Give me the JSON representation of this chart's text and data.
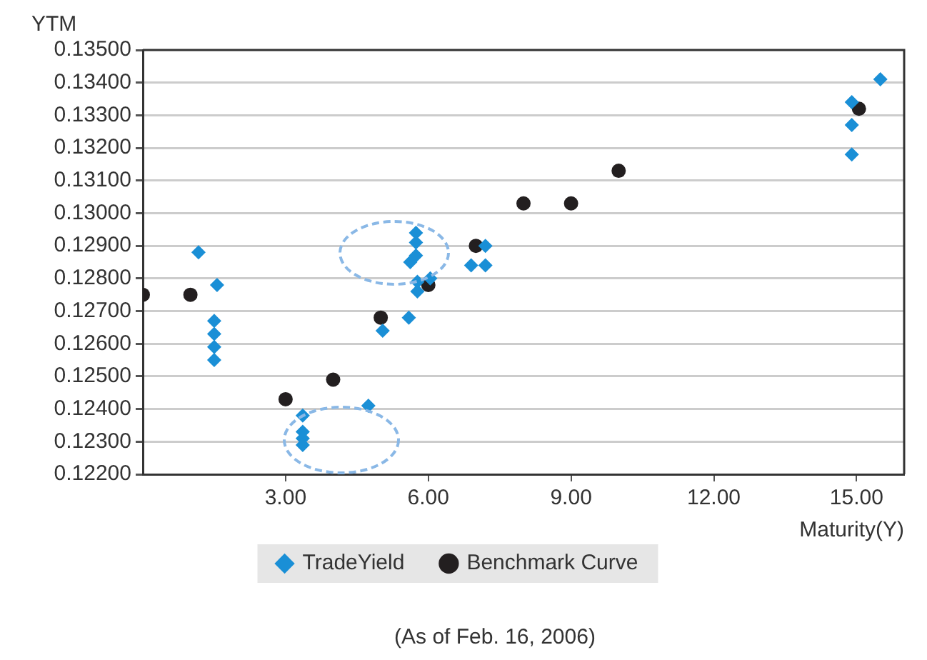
{
  "chart_data": {
    "type": "scatter",
    "xlabel": "Maturity(Y)",
    "ylabel": "YTM",
    "annotations": [
      "(As of Feb. 16, 2006)"
    ],
    "xlim": [
      0,
      16
    ],
    "xticks": [
      {
        "value": 3,
        "label": "3.00"
      },
      {
        "value": 6,
        "label": "6.00"
      },
      {
        "value": 9,
        "label": "9.00"
      },
      {
        "value": 12,
        "label": "12.00"
      },
      {
        "value": 15,
        "label": "15.00"
      }
    ],
    "ylim": [
      0.122,
      0.135
    ],
    "yticks": [
      {
        "value": 0.122,
        "label": "0.12200"
      },
      {
        "value": 0.123,
        "label": "0.12300"
      },
      {
        "value": 0.124,
        "label": "0.12400"
      },
      {
        "value": 0.125,
        "label": "0.12500"
      },
      {
        "value": 0.126,
        "label": "0.12600"
      },
      {
        "value": 0.127,
        "label": "0.12700"
      },
      {
        "value": 0.128,
        "label": "0.12800"
      },
      {
        "value": 0.129,
        "label": "0.12900"
      },
      {
        "value": 0.13,
        "label": "0.13000"
      },
      {
        "value": 0.131,
        "label": "0.13100"
      },
      {
        "value": 0.132,
        "label": "0.13200"
      },
      {
        "value": 0.133,
        "label": "0.13300"
      },
      {
        "value": 0.134,
        "label": "0.13400"
      },
      {
        "value": 0.135,
        "label": "0.13500"
      }
    ],
    "grid": "y",
    "legend": "bottom",
    "series": [
      {
        "name": "TradeYield",
        "color": "#1a8fd6",
        "marker": "diamond",
        "x": [
          1.17,
          1.56,
          1.5,
          1.5,
          1.5,
          1.5,
          3.36,
          3.36,
          3.36,
          3.36,
          4.74,
          5.04,
          5.59,
          5.74,
          5.74,
          5.74,
          5.62,
          5.77,
          5.77,
          6.04,
          6.9,
          7.2,
          7.2,
          14.9,
          14.9,
          14.9,
          15.5
        ],
        "values": [
          0.1288,
          0.1278,
          0.1267,
          0.1263,
          0.1259,
          0.1255,
          0.1238,
          0.1233,
          0.1231,
          0.1229,
          0.1241,
          0.1264,
          0.1268,
          0.1294,
          0.1291,
          0.1287,
          0.1285,
          0.1279,
          0.1276,
          0.128,
          0.1284,
          0.1284,
          0.129,
          0.1327,
          0.1318,
          0.1334,
          0.1341
        ]
      },
      {
        "name": "Benchmark Curve",
        "color": "#231f20",
        "marker": "circle",
        "x": [
          0,
          1,
          3,
          4,
          5,
          6,
          7,
          8,
          9,
          10,
          15.05
        ],
        "values": [
          0.1275,
          0.1275,
          0.1243,
          0.1249,
          0.1268,
          0.1278,
          0.129,
          0.1303,
          0.1303,
          0.1313,
          0.1332
        ]
      }
    ]
  }
}
